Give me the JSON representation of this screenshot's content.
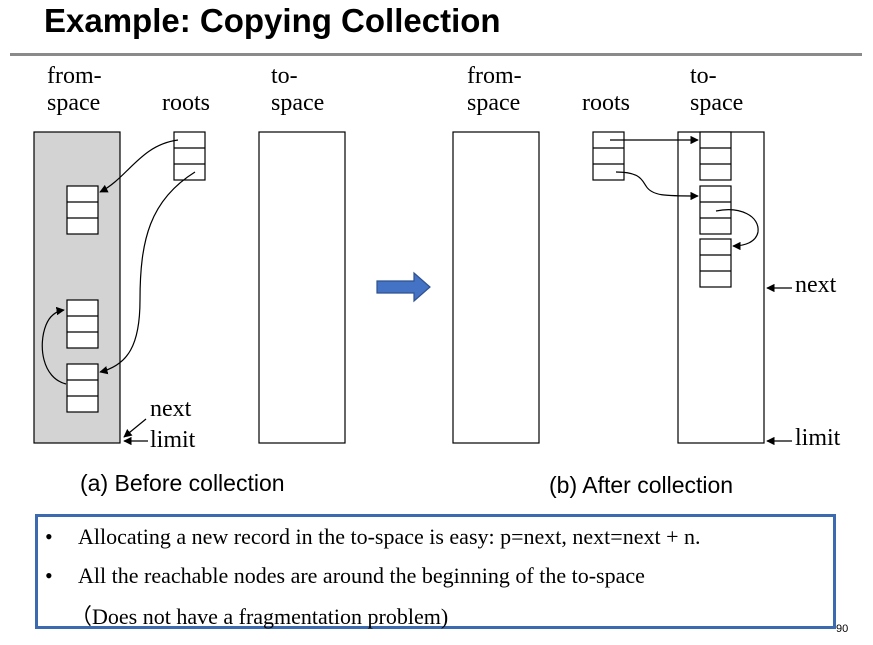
{
  "slide": {
    "title": "Example: Copying Collection",
    "page_number": "90"
  },
  "before": {
    "from_space_label": [
      "from-",
      "space"
    ],
    "roots_label": "roots",
    "to_space_label": [
      "to-",
      "space"
    ],
    "next_label": "next",
    "limit_label": "limit",
    "caption": "(a) Before collection"
  },
  "after": {
    "from_space_label": [
      "from-",
      "space"
    ],
    "roots_label": "roots",
    "to_space_label": [
      "to-",
      "space"
    ],
    "next_label": "next",
    "limit_label": "limit",
    "caption": "(b) After collection"
  },
  "notes": {
    "items": [
      "Allocating a new record in the to-space is easy:  p=next, next=next + n.",
      "All the reachable nodes are around the beginning of the to-space"
    ],
    "sub": "（Does not have a fragmentation problem)"
  },
  "colors": {
    "from_space_fill": "#d3d3d3",
    "transition_arrow": "#4472c4",
    "notes_border": "#3c6ab0",
    "rule": "#8a8a8a"
  }
}
